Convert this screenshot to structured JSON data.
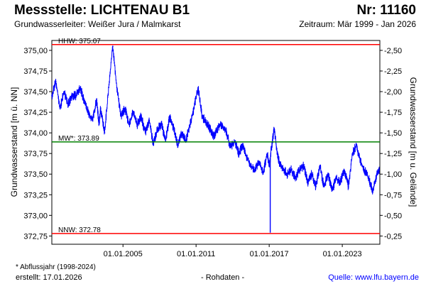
{
  "header": {
    "title_left": "Messstelle: LICHTENAU B1",
    "title_right": "Nr: 11160",
    "subtitle_left": "Grundwasserleiter:   Weißer Jura / Malmkarst",
    "subtitle_right": "Zeitraum: Mär 1999 - Jan 2026"
  },
  "footer": {
    "note": "* Abflussjahr (1998-2024)",
    "created": "erstellt:   17.01.2026",
    "raw": "- Rohdaten -",
    "source": "Quelle: www.lfu.bayern.de"
  },
  "colors": {
    "series": "#0000ff",
    "extreme_lines": "#ff0000",
    "mean_line": "#008000",
    "source_link": "#0000ff"
  },
  "chart_data": {
    "type": "line",
    "ylabel": "Grundwasserstand [m ü. NN]",
    "y2label": "Grundwasserstand [m u. Gelände]",
    "ylim": [
      372.65,
      375.12
    ],
    "y_ticks": [
      "375,00",
      "374,75",
      "374,50",
      "374,25",
      "374,00",
      "373,75",
      "373,50",
      "373,25",
      "373,00",
      "372,75"
    ],
    "y2_ticks": [
      "-2,50",
      "-2,25",
      "-2,00",
      "-1,75",
      "-1,50",
      "-1,25",
      "-1,00",
      "-0,75",
      "-0,50",
      "-0,25"
    ],
    "xlim": [
      "1999-03-01",
      "2026-01-31"
    ],
    "x_ticks": [
      "01.01.2005",
      "01.01.2011",
      "01.01.2017",
      "01.01.2023"
    ],
    "grid": false,
    "reference_lines": [
      {
        "label": "HHW: 375.07",
        "value": 375.07,
        "color": "#ff0000"
      },
      {
        "label": "MW*: 373.89",
        "value": 373.89,
        "color": "#008000"
      },
      {
        "label": "NNW: 372.78",
        "value": 372.78,
        "color": "#ff0000"
      }
    ],
    "series": [
      {
        "x": [
          "1999-03-01",
          "1999-07-01",
          "1999-11-01",
          "2000-03-01",
          "2000-07-01",
          "2000-11-01",
          "2001-03-01",
          "2001-07-01",
          "2001-11-01",
          "2002-03-01",
          "2002-07-01",
          "2002-11-01",
          "2003-01-15",
          "2003-03-01",
          "2003-07-01",
          "2003-11-01",
          "2004-03-01",
          "2004-07-01",
          "2004-11-01",
          "2005-03-01",
          "2005-07-01",
          "2005-11-01",
          "2006-03-01",
          "2006-07-01",
          "2006-11-01",
          "2007-03-01",
          "2007-07-01",
          "2007-11-01",
          "2008-03-01",
          "2008-07-01",
          "2008-11-01",
          "2009-03-01",
          "2009-07-01",
          "2009-11-01",
          "2010-03-01",
          "2010-07-01",
          "2010-11-01",
          "2011-03-01",
          "2011-07-01",
          "2011-11-01",
          "2012-03-01",
          "2012-07-01",
          "2012-11-01",
          "2013-03-01",
          "2013-07-01",
          "2013-11-01",
          "2014-03-01",
          "2014-07-01",
          "2014-11-01",
          "2015-03-01",
          "2015-07-01",
          "2015-11-01",
          "2016-03-01",
          "2016-07-01",
          "2016-11-01",
          "2017-01-10",
          "2017-03-01",
          "2017-06-01",
          "2017-09-01",
          "2017-12-01",
          "2018-03-01",
          "2018-07-01",
          "2018-11-01",
          "2019-03-01",
          "2019-07-01",
          "2019-11-01",
          "2020-03-01",
          "2020-07-01",
          "2020-11-01",
          "2021-03-01",
          "2021-07-01",
          "2021-11-01",
          "2022-03-01",
          "2022-07-01",
          "2022-11-01",
          "2023-03-01",
          "2023-07-01",
          "2023-11-01",
          "2024-03-01",
          "2024-07-01",
          "2024-11-01",
          "2025-03-01",
          "2025-07-01",
          "2025-11-01",
          "2026-01-15"
        ],
        "values": [
          374.45,
          374.62,
          374.3,
          374.5,
          374.35,
          374.45,
          374.45,
          374.55,
          374.38,
          374.25,
          374.15,
          374.4,
          374.1,
          374.3,
          374.0,
          374.55,
          375.05,
          374.55,
          374.2,
          374.3,
          374.1,
          374.25,
          374.1,
          374.2,
          374.0,
          374.15,
          373.85,
          374.05,
          374.1,
          373.9,
          374.2,
          374.05,
          373.85,
          374.0,
          373.9,
          374.1,
          374.3,
          374.55,
          374.2,
          374.12,
          374.05,
          373.95,
          374.08,
          374.1,
          374.0,
          373.82,
          373.9,
          373.75,
          373.85,
          373.7,
          373.6,
          373.55,
          373.65,
          373.5,
          373.75,
          373.6,
          373.8,
          374.05,
          373.75,
          373.6,
          373.55,
          373.5,
          373.55,
          373.45,
          373.55,
          373.6,
          373.4,
          373.5,
          373.35,
          373.6,
          373.35,
          373.5,
          373.3,
          373.45,
          373.4,
          373.55,
          373.35,
          373.75,
          373.85,
          373.65,
          373.55,
          373.45,
          373.3,
          373.5,
          373.55
        ]
      }
    ]
  }
}
